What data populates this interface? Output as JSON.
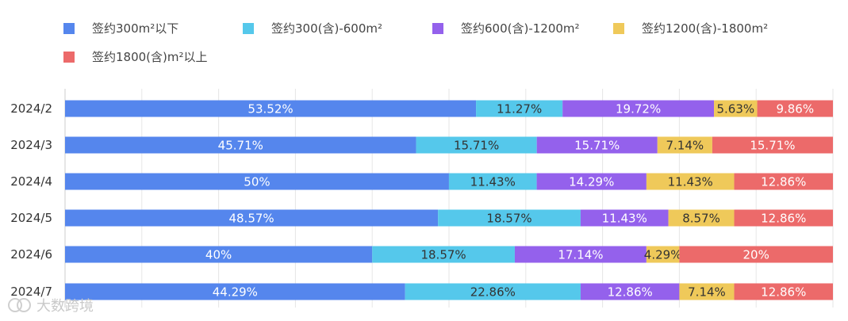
{
  "chart_data": {
    "type": "bar",
    "orientation": "horizontal",
    "stacked": true,
    "normalized": true,
    "categories": [
      "2024/2",
      "2024/3",
      "2024/4",
      "2024/5",
      "2024/6",
      "2024/7"
    ],
    "series": [
      {
        "name": "签约300m²以下",
        "color": "#5586ED",
        "values": [
          53.52,
          45.71,
          50,
          48.57,
          40,
          44.29
        ],
        "labels": [
          "53.52%",
          "45.71%",
          "50%",
          "48.57%",
          "40%",
          "44.29%"
        ]
      },
      {
        "name": "签约300(含)-600m²",
        "color": "#55C8EB",
        "values": [
          11.27,
          15.71,
          11.43,
          18.57,
          18.57,
          22.86
        ],
        "labels": [
          "11.27%",
          "15.71%",
          "11.43%",
          "18.57%",
          "18.57%",
          "22.86%"
        ]
      },
      {
        "name": "签约600(含)-1200m²",
        "color": "#9461EC",
        "values": [
          19.72,
          15.71,
          14.29,
          11.43,
          17.14,
          12.86
        ],
        "labels": [
          "19.72%",
          "15.71%",
          "14.29%",
          "11.43%",
          "17.14%",
          "12.86%"
        ]
      },
      {
        "name": "签约1200(含)-1800m²",
        "color": "#EFC95A",
        "values": [
          5.63,
          7.14,
          11.43,
          8.57,
          4.29,
          7.14
        ],
        "labels": [
          "5.63%",
          "7.14%",
          "11.43%",
          "8.57%",
          "4.29%",
          "7.14%"
        ]
      },
      {
        "name": "签约1800(含)m²以上",
        "color": "#EC6A6A",
        "values": [
          9.86,
          15.71,
          12.86,
          12.86,
          20,
          12.86
        ],
        "labels": [
          "9.86%",
          "15.71%",
          "12.86%",
          "12.86%",
          "20%",
          "12.86%"
        ]
      }
    ],
    "xlim": [
      0,
      100
    ],
    "grid": true,
    "legend": "top-left",
    "title": "",
    "xlabel": "",
    "ylabel": ""
  },
  "watermark": {
    "text": "大数跨境"
  }
}
